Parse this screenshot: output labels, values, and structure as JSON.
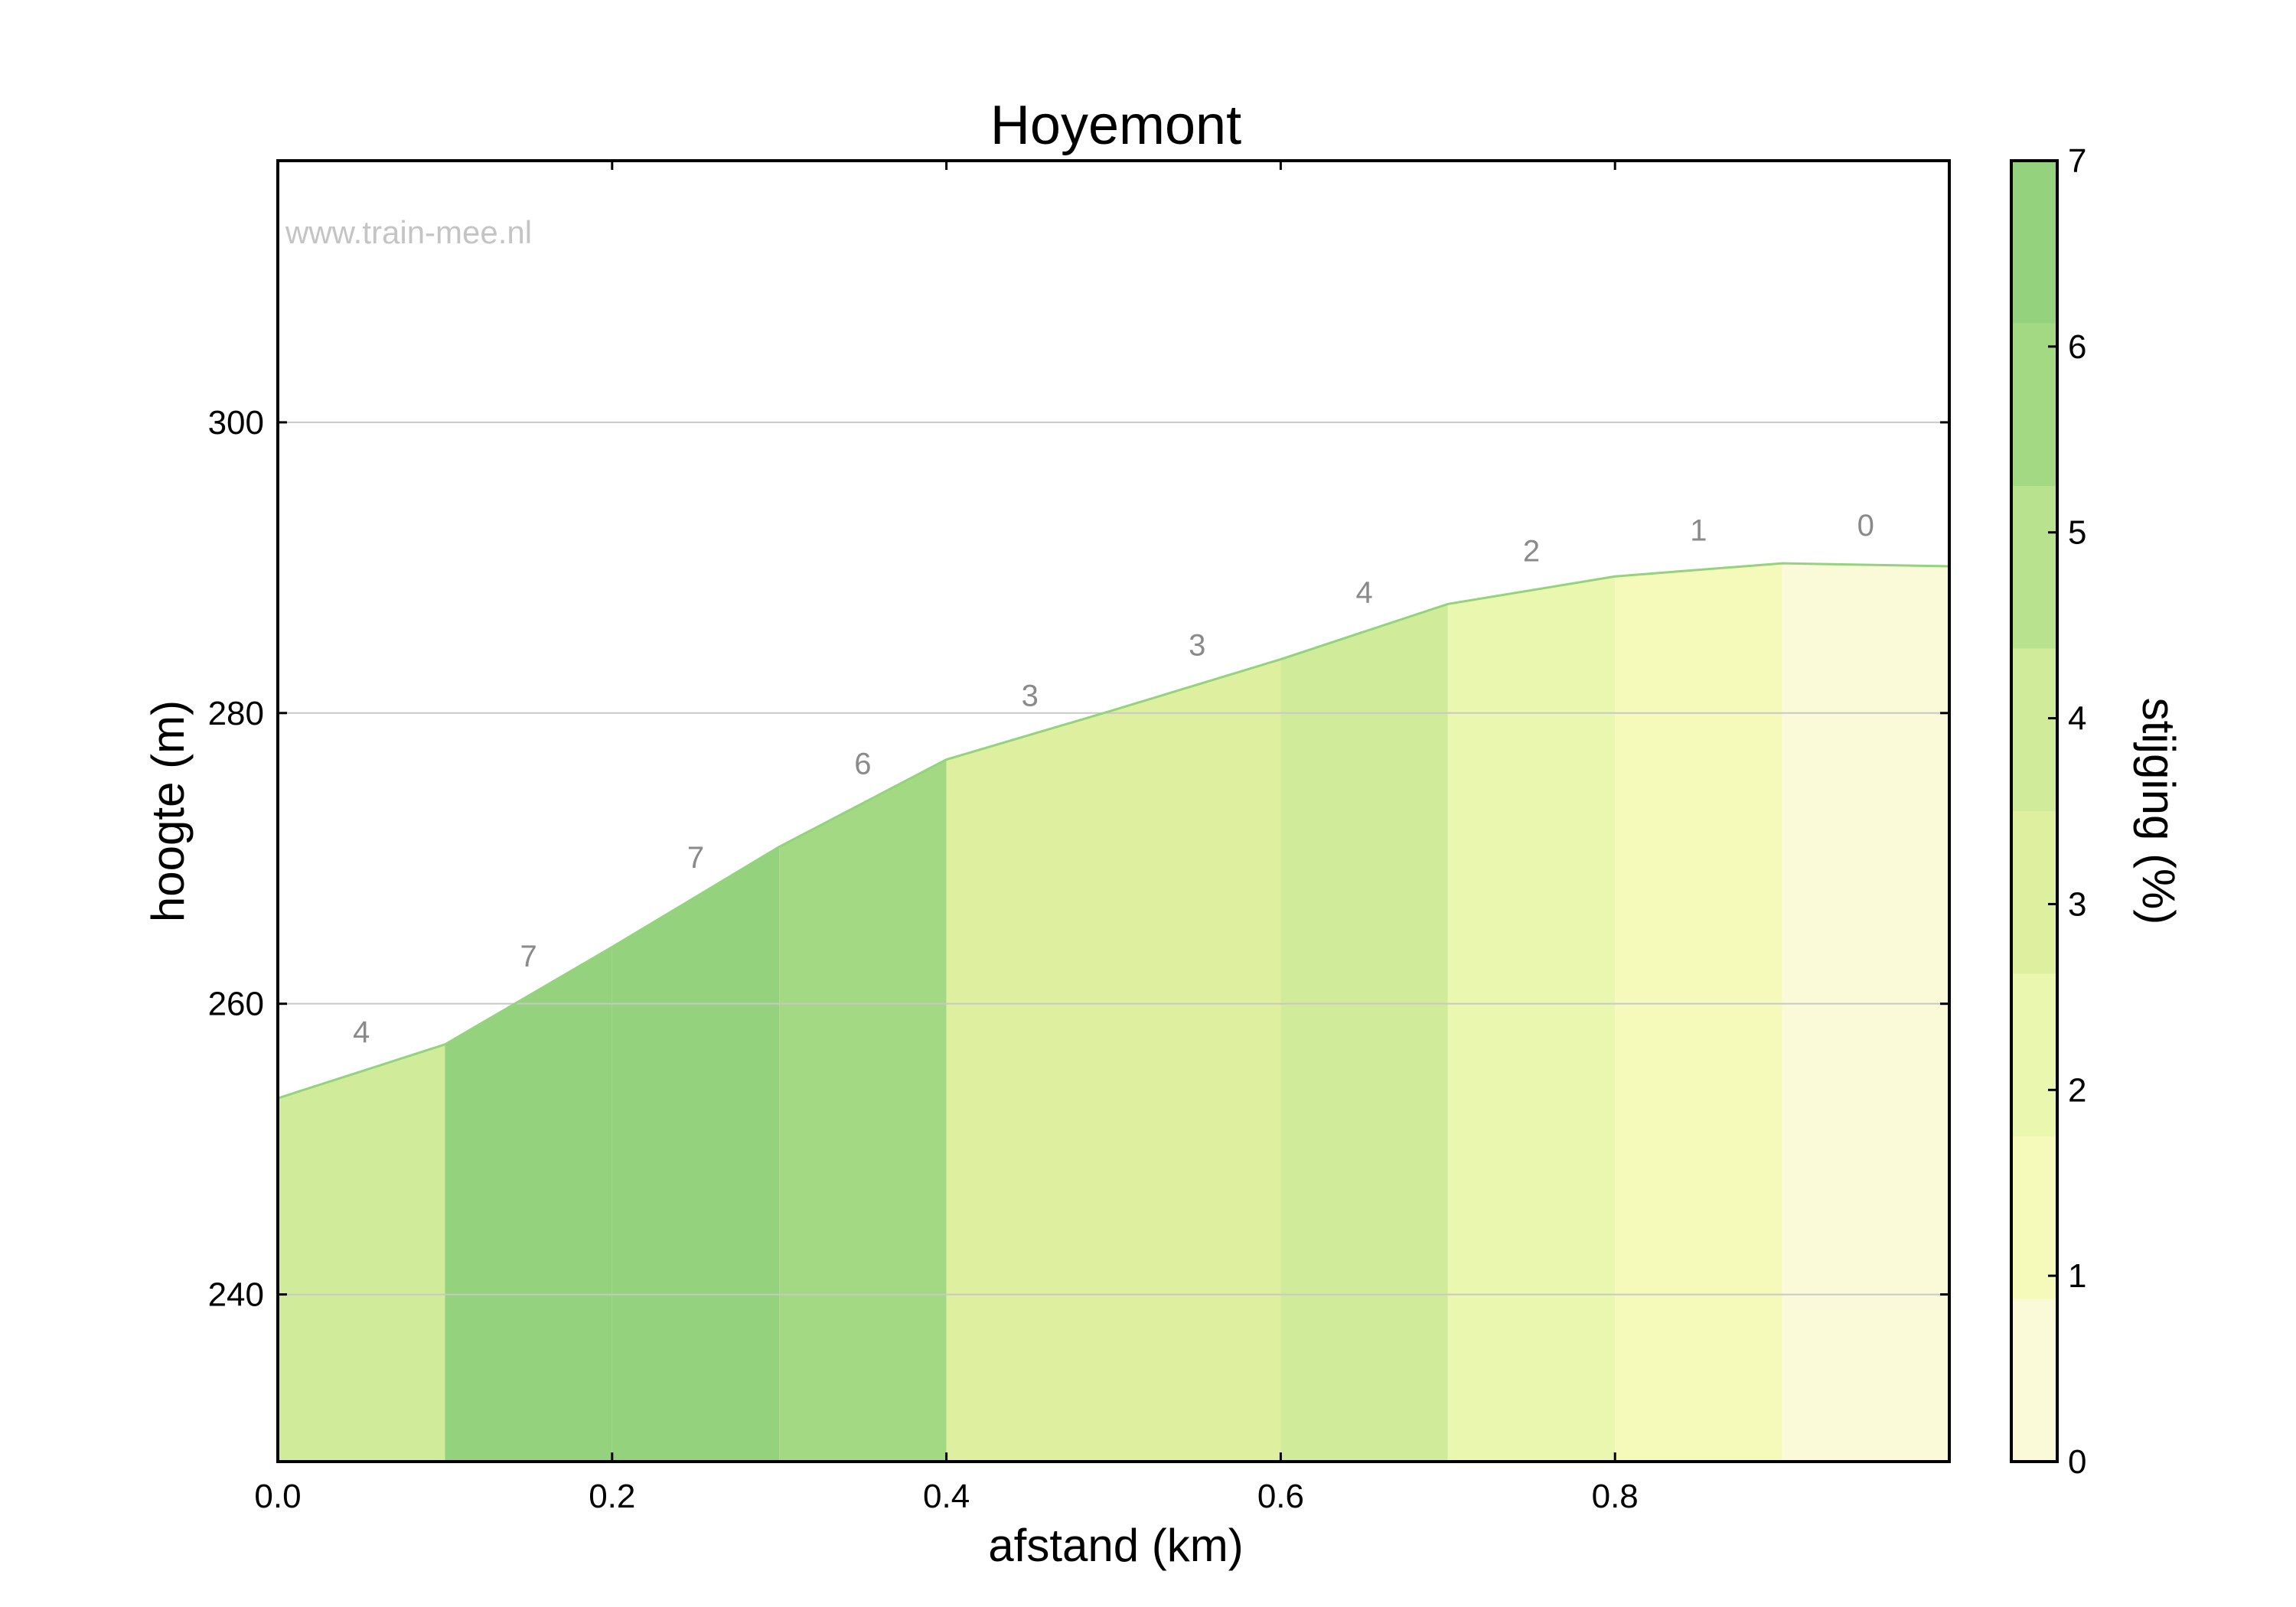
{
  "chart_data": {
    "type": "area",
    "title": "Hoyemont",
    "xlabel": "afstand (km)",
    "ylabel": "hoogte (m)",
    "xlim": [
      0,
      1.0
    ],
    "ylim": [
      228.5,
      318
    ],
    "xticks": [
      0.0,
      0.2,
      0.4,
      0.6,
      0.8
    ],
    "xtick_labels": [
      "0.0",
      "0.2",
      "0.4",
      "0.6",
      "0.8"
    ],
    "yticks": [
      240,
      260,
      280,
      300
    ],
    "ytick_labels": [
      "240",
      "260",
      "280",
      "300"
    ],
    "grid": "horizontal",
    "watermark": "www.train-mee.nl",
    "profile": {
      "x": [
        0.0,
        0.1,
        0.2,
        0.3,
        0.4,
        0.5,
        0.6,
        0.7,
        0.8,
        0.9,
        1.0
      ],
      "y": [
        253.5,
        257.2,
        263.9,
        270.8,
        276.8,
        280.2,
        283.7,
        287.5,
        289.4,
        290.3,
        290.1
      ]
    },
    "segments": [
      {
        "x0": 0.0,
        "x1": 0.1,
        "grade": 4,
        "label": "4"
      },
      {
        "x0": 0.1,
        "x1": 0.2,
        "grade": 7,
        "label": "7"
      },
      {
        "x0": 0.2,
        "x1": 0.3,
        "grade": 7,
        "label": "7"
      },
      {
        "x0": 0.3,
        "x1": 0.4,
        "grade": 6,
        "label": "6"
      },
      {
        "x0": 0.4,
        "x1": 0.5,
        "grade": 3,
        "label": "3"
      },
      {
        "x0": 0.5,
        "x1": 0.6,
        "grade": 3,
        "label": "3"
      },
      {
        "x0": 0.6,
        "x1": 0.7,
        "grade": 4,
        "label": "4"
      },
      {
        "x0": 0.7,
        "x1": 0.8,
        "grade": 2,
        "label": "2"
      },
      {
        "x0": 0.8,
        "x1": 0.9,
        "grade": 1,
        "label": "1"
      },
      {
        "x0": 0.9,
        "x1": 1.0,
        "grade": 0,
        "label": "0"
      }
    ],
    "colorbar": {
      "label": "stijging (%)",
      "range": [
        0,
        7
      ],
      "ticks": [
        0,
        1,
        2,
        3,
        4,
        5,
        6,
        7
      ],
      "tick_labels": [
        "0",
        "1",
        "2",
        "3",
        "4",
        "5",
        "6",
        "7"
      ],
      "colors": [
        "#fafad8",
        "#f5fabb",
        "#eaf7ae",
        "#def0a0",
        "#d0ec9a",
        "#b8e28d",
        "#a4d983",
        "#94d27d"
      ]
    },
    "line_color": "#94d27d"
  }
}
